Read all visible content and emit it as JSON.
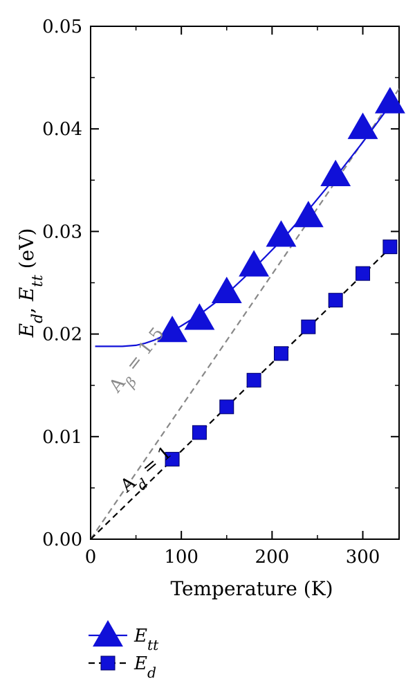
{
  "chart_data": {
    "type": "line",
    "xlabel": "Temperature (K)",
    "ylabel_parts": [
      {
        "text": "E",
        "italic": true
      },
      {
        "text": "d",
        "italic": true,
        "sub": true
      },
      {
        "text": ", ",
        "italic": false
      },
      {
        "text": "E",
        "italic": true
      },
      {
        "text": "tt",
        "italic": true,
        "sub": true
      },
      {
        "text": " (eV)",
        "italic": false
      }
    ],
    "xlim": [
      0,
      340
    ],
    "ylim": [
      0,
      0.05
    ],
    "x_ticks": [
      {
        "value": 0,
        "label": "0"
      },
      {
        "value": 100,
        "label": "100"
      },
      {
        "value": 200,
        "label": "200"
      },
      {
        "value": 300,
        "label": "300"
      }
    ],
    "y_ticks": [
      {
        "value": 0,
        "label": "0.00"
      },
      {
        "value": 0.01,
        "label": "0.01"
      },
      {
        "value": 0.02,
        "label": "0.02"
      },
      {
        "value": 0.03,
        "label": "0.03"
      },
      {
        "value": 0.04,
        "label": "0.04"
      },
      {
        "value": 0.05,
        "label": "0.05"
      }
    ],
    "grid": false,
    "legend_position": "bottom-left-outside",
    "series": [
      {
        "name": "E_tt",
        "legend": {
          "main": "E",
          "sub": "tt"
        },
        "marker": "triangle",
        "color": "#1010d8",
        "line_style": "solid",
        "x": [
          90,
          120,
          150,
          180,
          210,
          240,
          270,
          300,
          330
        ],
        "y": [
          0.0203,
          0.0215,
          0.0241,
          0.0267,
          0.0296,
          0.0315,
          0.0355,
          0.0401,
          0.0426
        ],
        "fit_curve": {
          "x": [
            5,
            20,
            35,
            50,
            60,
            70,
            80,
            90,
            100,
            120,
            150,
            180,
            210,
            240,
            270,
            300,
            330
          ],
          "y": [
            0.0188,
            0.0188,
            0.0188,
            0.0189,
            0.0191,
            0.0194,
            0.0198,
            0.0203,
            0.0208,
            0.0219,
            0.0239,
            0.0264,
            0.0291,
            0.0321,
            0.0353,
            0.0387,
            0.0423
          ]
        }
      },
      {
        "name": "E_d",
        "legend": {
          "main": "E",
          "sub": "d"
        },
        "marker": "square",
        "color": "#1010d8",
        "line_style": "dashed",
        "line_color": "#000000",
        "x": [
          90,
          120,
          150,
          180,
          210,
          240,
          270,
          300,
          330
        ],
        "y": [
          0.0078,
          0.0104,
          0.0129,
          0.0155,
          0.0181,
          0.0207,
          0.0233,
          0.0259,
          0.0285
        ],
        "dashed_line": {
          "x": [
            0,
            335
          ],
          "y": [
            0.0,
            0.0288
          ]
        }
      }
    ],
    "reference_lines": [
      {
        "name": "A_beta",
        "x": [
          0,
          340
        ],
        "y": [
          0.0,
          0.0439
        ],
        "color": "#888888",
        "line_style": "dashed"
      }
    ],
    "annotations": [
      {
        "id": "abeta",
        "parts": [
          {
            "text": "A",
            "italic": false
          },
          {
            "text": "β",
            "italic": true,
            "sub": true
          },
          {
            "text": " = 1.5",
            "italic": false
          }
        ],
        "color": "#8a8a8a",
        "x": 30,
        "y": 0.0142,
        "angle_deg": -52
      },
      {
        "id": "ad",
        "parts": [
          {
            "text": "A",
            "italic": false
          },
          {
            "text": "d",
            "italic": true,
            "sub": true
          },
          {
            "text": " = 1",
            "italic": false
          }
        ],
        "color": "#000000",
        "x": 40,
        "y": 0.0045,
        "angle_deg": -40
      }
    ]
  }
}
